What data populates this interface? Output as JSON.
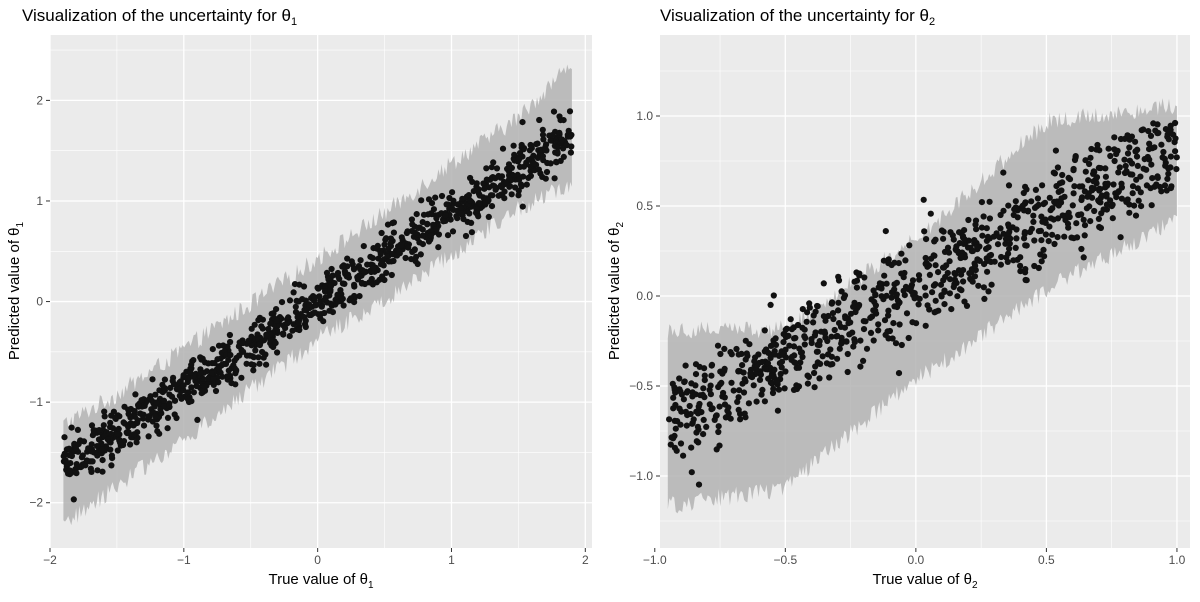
{
  "chart_data": [
    {
      "type": "scatter",
      "title": "Visualization of the uncertainty for θ",
      "title_subscript": "1",
      "xlabel": "True value of θ",
      "xlabel_subscript": "1",
      "ylabel": "Predicted value of θ",
      "ylabel_subscript": "1",
      "xlim": [
        -2.0,
        2.05
      ],
      "ylim": [
        -2.45,
        2.65
      ],
      "x_ticks": [
        -2,
        -1,
        0,
        1,
        2
      ],
      "x_tick_labels": [
        "−2",
        "−1",
        "0",
        "1",
        "2"
      ],
      "y_ticks": [
        -2,
        -1,
        0,
        1,
        2
      ],
      "y_tick_labels": [
        "−2",
        "−1",
        "0",
        "1",
        "2"
      ],
      "grid": true,
      "panel_background": "#ebebeb",
      "point_color": "#111111",
      "band_color": "#b3b3b3",
      "n_points": 1000,
      "x_range": [
        -1.9,
        1.9
      ],
      "trend": {
        "slope": 0.87,
        "intercept": 0.0
      },
      "point_noise_sd": 0.12,
      "band": [
        {
          "x": -1.9,
          "lower": -2.2,
          "upper": -1.25
        },
        {
          "x": -1.5,
          "lower": -1.8,
          "upper": -0.95
        },
        {
          "x": -1.0,
          "lower": -1.35,
          "upper": -0.5
        },
        {
          "x": -0.5,
          "lower": -0.85,
          "upper": -0.05
        },
        {
          "x": 0.0,
          "lower": -0.35,
          "upper": 0.4
        },
        {
          "x": 0.5,
          "lower": 0.05,
          "upper": 0.85
        },
        {
          "x": 1.0,
          "lower": 0.5,
          "upper": 1.35
        },
        {
          "x": 1.5,
          "lower": 0.95,
          "upper": 1.8
        },
        {
          "x": 1.9,
          "lower": 1.2,
          "upper": 2.35
        }
      ]
    },
    {
      "type": "scatter",
      "title": "Visualization of the uncertainty for θ",
      "title_subscript": "2",
      "xlabel": "True value of θ",
      "xlabel_subscript": "2",
      "ylabel": "Predicted value of θ",
      "ylabel_subscript": "2",
      "xlim": [
        -0.98,
        1.05
      ],
      "ylim": [
        -1.4,
        1.45
      ],
      "x_ticks": [
        -1.0,
        -0.5,
        0.0,
        0.5,
        1.0
      ],
      "x_tick_labels": [
        "−1.0",
        "−0.5",
        "0.0",
        "0.5",
        "1.0"
      ],
      "y_ticks": [
        -1.0,
        -0.5,
        0.0,
        0.5,
        1.0
      ],
      "y_tick_labels": [
        "−1.0",
        "−0.5",
        "0.0",
        "0.5",
        "1.0"
      ],
      "grid": true,
      "panel_background": "#ebebeb",
      "point_color": "#111111",
      "band_color": "#b3b3b3",
      "n_points": 900,
      "x_range": [
        -0.95,
        1.0
      ],
      "trend": {
        "slope": 0.78,
        "intercept": 0.05
      },
      "point_noise_sd": 0.13,
      "band": [
        {
          "x": -0.95,
          "lower": -1.15,
          "upper": -0.2
        },
        {
          "x": -0.5,
          "lower": -1.05,
          "upper": -0.2
        },
        {
          "x": 0.0,
          "lower": -0.45,
          "upper": 0.3
        },
        {
          "x": 0.5,
          "lower": 0.05,
          "upper": 0.95
        },
        {
          "x": 1.0,
          "lower": 0.45,
          "upper": 1.05
        }
      ]
    }
  ]
}
